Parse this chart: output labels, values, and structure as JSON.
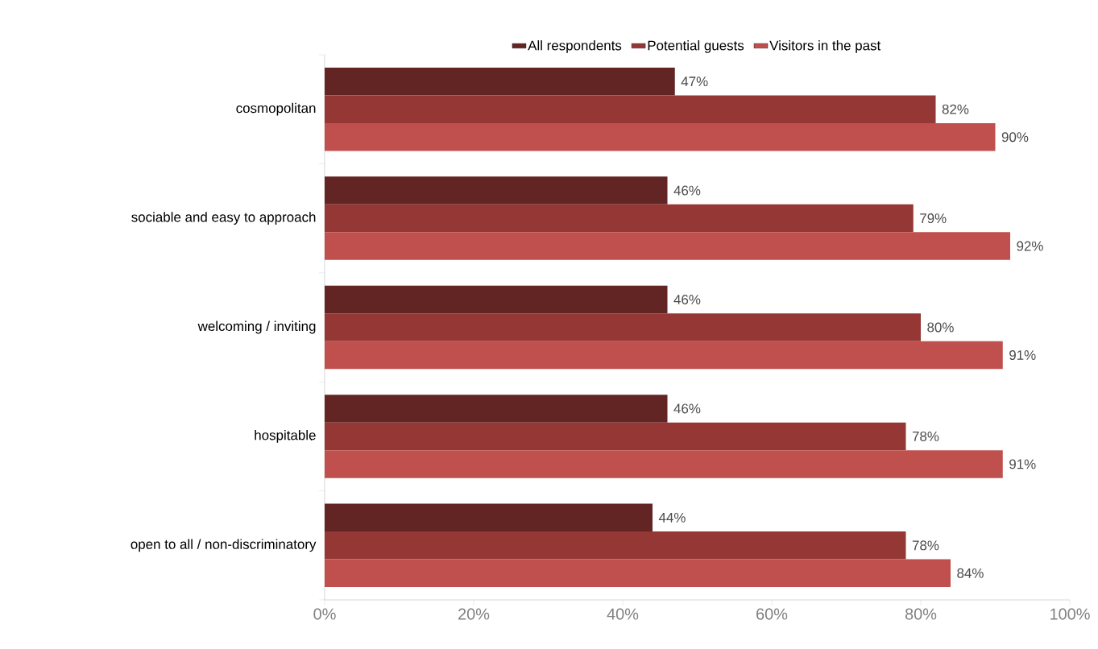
{
  "chart_data": {
    "type": "bar",
    "orientation": "horizontal",
    "legend": "top",
    "categories": [
      "cosmopolitan",
      "sociable and easy to approach",
      "welcoming / inviting",
      "hospitable",
      "open to all / non-discriminatory"
    ],
    "series": [
      {
        "name": "All respondents",
        "color": "#632523",
        "values": [
          47,
          46,
          46,
          46,
          44
        ],
        "value_labels": [
          "47%",
          "46%",
          "46%",
          "46%",
          "44%"
        ]
      },
      {
        "name": "Potential guests",
        "color": "#953735",
        "values": [
          82,
          79,
          80,
          78,
          78
        ],
        "value_labels": [
          "82%",
          "79%",
          "80%",
          "78%",
          "78%"
        ]
      },
      {
        "name": "Visitors in the past",
        "color": "#c0504d",
        "values": [
          90,
          92,
          91,
          91,
          84
        ],
        "value_labels": [
          "90%",
          "92%",
          "91%",
          "91%",
          "84%"
        ]
      }
    ],
    "xlim": [
      0,
      100
    ],
    "xticks": [
      {
        "value": 0,
        "label": "0%"
      },
      {
        "value": 20,
        "label": "20%"
      },
      {
        "value": 40,
        "label": "40%"
      },
      {
        "value": 60,
        "label": "60%"
      },
      {
        "value": 80,
        "label": "80%"
      },
      {
        "value": 100,
        "label": "100%"
      }
    ]
  }
}
